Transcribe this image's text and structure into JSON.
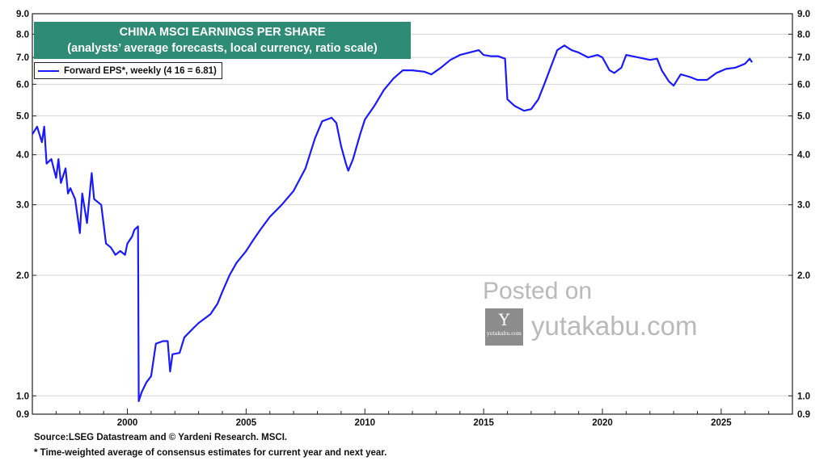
{
  "title": {
    "line1": "CHINA MSCI EARNINGS PER SHARE",
    "line2": "(analysts’ average forecasts, local currency, ratio scale)"
  },
  "legend": {
    "label": "Forward EPS*, weekly (4 16 = 6.81)",
    "color": "#1a1aff"
  },
  "footnotes": {
    "source": "Source:LSEG Datastream and © Yardeni Research. MSCI.",
    "note": "* Time-weighted average of consensus estimates for current year and next year."
  },
  "watermark": {
    "posted": "Posted on",
    "site": "yutakabu.com",
    "logo_letter": "Y",
    "logo_small": "yutakabu.com"
  },
  "colors": {
    "title_bg": "#2e8b76",
    "line": "#1a1aff",
    "grid": "#d4d4d4"
  },
  "chart_data": {
    "type": "line",
    "scale": "log",
    "grid": "horizontal",
    "legend_position": "top-left",
    "xlim": [
      1996.0,
      2028.0
    ],
    "ylim": [
      0.9,
      9.0
    ],
    "x_ticks": [
      2000,
      2005,
      2010,
      2015,
      2020,
      2025
    ],
    "y_ticks": [
      0.9,
      1.0,
      2.0,
      3.0,
      4.0,
      5.0,
      6.0,
      7.0,
      8.0,
      9.0
    ],
    "y_tick_labels": [
      "0.9",
      "1.0",
      "2.0",
      "3.0",
      "4.0",
      "5.0",
      "6.0",
      "7.0",
      "8.0",
      "9.0"
    ],
    "series": [
      {
        "name": "Forward EPS*, weekly (4 16 = 6.81)",
        "points": [
          [
            1996.0,
            4.5
          ],
          [
            1996.2,
            4.7
          ],
          [
            1996.4,
            4.3
          ],
          [
            1996.5,
            4.7
          ],
          [
            1996.6,
            3.8
          ],
          [
            1996.8,
            3.9
          ],
          [
            1997.0,
            3.5
          ],
          [
            1997.1,
            3.9
          ],
          [
            1997.2,
            3.4
          ],
          [
            1997.4,
            3.7
          ],
          [
            1997.5,
            3.2
          ],
          [
            1997.6,
            3.3
          ],
          [
            1997.8,
            3.1
          ],
          [
            1998.0,
            2.55
          ],
          [
            1998.1,
            3.2
          ],
          [
            1998.3,
            2.7
          ],
          [
            1998.5,
            3.6
          ],
          [
            1998.6,
            3.1
          ],
          [
            1998.9,
            3.0
          ],
          [
            1999.1,
            2.4
          ],
          [
            1999.3,
            2.35
          ],
          [
            1999.5,
            2.25
          ],
          [
            1999.7,
            2.3
          ],
          [
            1999.9,
            2.25
          ],
          [
            2000.0,
            2.4
          ],
          [
            2000.2,
            2.5
          ],
          [
            2000.3,
            2.6
          ],
          [
            2000.45,
            2.65
          ],
          [
            2000.48,
            0.97
          ],
          [
            2000.6,
            1.02
          ],
          [
            2000.8,
            1.08
          ],
          [
            2001.0,
            1.12
          ],
          [
            2001.2,
            1.35
          ],
          [
            2001.5,
            1.37
          ],
          [
            2001.7,
            1.37
          ],
          [
            2001.8,
            1.15
          ],
          [
            2001.9,
            1.27
          ],
          [
            2002.2,
            1.28
          ],
          [
            2002.4,
            1.4
          ],
          [
            2002.8,
            1.48
          ],
          [
            2003.0,
            1.52
          ],
          [
            2003.5,
            1.6
          ],
          [
            2003.8,
            1.7
          ],
          [
            2004.0,
            1.82
          ],
          [
            2004.3,
            2.0
          ],
          [
            2004.6,
            2.15
          ],
          [
            2005.0,
            2.3
          ],
          [
            2005.3,
            2.45
          ],
          [
            2005.6,
            2.6
          ],
          [
            2006.0,
            2.8
          ],
          [
            2006.5,
            3.0
          ],
          [
            2007.0,
            3.25
          ],
          [
            2007.5,
            3.7
          ],
          [
            2007.9,
            4.4
          ],
          [
            2008.2,
            4.85
          ],
          [
            2008.4,
            4.9
          ],
          [
            2008.6,
            4.95
          ],
          [
            2008.8,
            4.8
          ],
          [
            2009.0,
            4.2
          ],
          [
            2009.2,
            3.8
          ],
          [
            2009.3,
            3.65
          ],
          [
            2009.5,
            3.9
          ],
          [
            2009.8,
            4.5
          ],
          [
            2010.0,
            4.9
          ],
          [
            2010.4,
            5.3
          ],
          [
            2010.8,
            5.8
          ],
          [
            2011.2,
            6.2
          ],
          [
            2011.6,
            6.5
          ],
          [
            2012.0,
            6.5
          ],
          [
            2012.5,
            6.45
          ],
          [
            2012.8,
            6.35
          ],
          [
            2013.2,
            6.6
          ],
          [
            2013.6,
            6.9
          ],
          [
            2014.0,
            7.1
          ],
          [
            2014.4,
            7.2
          ],
          [
            2014.8,
            7.3
          ],
          [
            2015.0,
            7.1
          ],
          [
            2015.3,
            7.05
          ],
          [
            2015.6,
            7.05
          ],
          [
            2015.9,
            6.95
          ],
          [
            2016.0,
            5.5
          ],
          [
            2016.3,
            5.3
          ],
          [
            2016.7,
            5.15
          ],
          [
            2017.0,
            5.2
          ],
          [
            2017.3,
            5.5
          ],
          [
            2017.6,
            6.1
          ],
          [
            2017.9,
            6.8
          ],
          [
            2018.1,
            7.3
          ],
          [
            2018.4,
            7.5
          ],
          [
            2018.7,
            7.3
          ],
          [
            2019.0,
            7.2
          ],
          [
            2019.4,
            7.0
          ],
          [
            2019.8,
            7.1
          ],
          [
            2020.0,
            7.0
          ],
          [
            2020.3,
            6.5
          ],
          [
            2020.5,
            6.4
          ],
          [
            2020.8,
            6.6
          ],
          [
            2021.0,
            7.1
          ],
          [
            2021.5,
            7.0
          ],
          [
            2022.0,
            6.9
          ],
          [
            2022.3,
            6.95
          ],
          [
            2022.5,
            6.5
          ],
          [
            2022.8,
            6.1
          ],
          [
            2023.0,
            5.95
          ],
          [
            2023.3,
            6.35
          ],
          [
            2023.7,
            6.25
          ],
          [
            2024.0,
            6.15
          ],
          [
            2024.4,
            6.15
          ],
          [
            2024.8,
            6.4
          ],
          [
            2025.2,
            6.55
          ],
          [
            2025.6,
            6.6
          ],
          [
            2026.0,
            6.75
          ],
          [
            2026.2,
            6.95
          ],
          [
            2026.3,
            6.81
          ]
        ]
      }
    ]
  }
}
